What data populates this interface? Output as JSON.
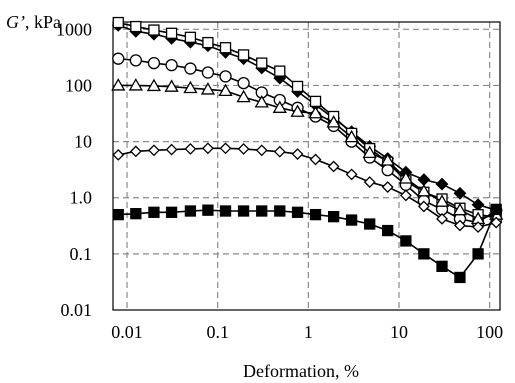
{
  "chart_data": {
    "type": "line",
    "ylabel_symbol": "G’",
    "ylabel_unit": ", kPa",
    "xlabel": "Deformation, %",
    "x_scale": "log",
    "y_scale": "log",
    "xlim": [
      0.01,
      100
    ],
    "ylim": [
      0.01,
      1000
    ],
    "x_ticks": [
      {
        "v": 0.01,
        "label": "0.01"
      },
      {
        "v": 0.1,
        "label": "0.1"
      },
      {
        "v": 1,
        "label": "1"
      },
      {
        "v": 10,
        "label": "10"
      },
      {
        "v": 100,
        "label": "100"
      }
    ],
    "y_ticks": [
      {
        "v": 1000,
        "label": "1000"
      },
      {
        "v": 100,
        "label": "100"
      },
      {
        "v": 10,
        "label": "10"
      },
      {
        "v": 1,
        "label": "1.0"
      },
      {
        "v": 0.1,
        "label": "0.1"
      },
      {
        "v": 0.01,
        "label": "0.01"
      }
    ],
    "grid": "dashed",
    "series": [
      {
        "marker": "filled-diamond",
        "x": [
          0.008,
          0.0125,
          0.0198,
          0.031,
          0.05,
          0.078,
          0.122,
          0.193,
          0.306,
          0.484,
          0.76,
          1.2,
          1.9,
          3.0,
          4.75,
          7.5,
          11.9,
          18.8,
          29.8,
          47,
          74.5,
          118
        ],
        "y": [
          1180,
          920,
          820,
          690,
          590,
          510,
          390,
          300,
          205,
          135,
          78,
          45,
          26,
          15,
          8.2,
          5.0,
          2.85,
          2.1,
          1.75,
          1.2,
          0.75,
          0.6
        ]
      },
      {
        "marker": "open-square",
        "x": [
          0.008,
          0.0125,
          0.0198,
          0.031,
          0.05,
          0.078,
          0.122,
          0.193,
          0.306,
          0.484,
          0.76,
          1.2,
          1.9,
          3.0,
          4.75,
          7.5,
          11.9,
          18.8,
          29.8,
          47,
          74.5,
          118
        ],
        "y": [
          1320,
          1120,
          970,
          850,
          720,
          580,
          470,
          350,
          250,
          180,
          96,
          52,
          28,
          14,
          7.5,
          4.3,
          2.0,
          1.25,
          0.95,
          0.65,
          0.5,
          0.45
        ]
      },
      {
        "marker": "open-circle",
        "x": [
          0.008,
          0.0125,
          0.0198,
          0.031,
          0.05,
          0.078,
          0.122,
          0.193,
          0.306,
          0.484,
          0.76,
          1.2,
          1.9,
          3.0,
          4.75,
          7.5,
          11.9,
          18.8,
          29.8,
          47,
          74.5,
          118
        ],
        "y": [
          300,
          280,
          250,
          230,
          200,
          170,
          145,
          110,
          75,
          55,
          40,
          28,
          19,
          10,
          5.2,
          3.1,
          1.7,
          0.88,
          0.62,
          0.42,
          0.36,
          0.6
        ]
      },
      {
        "marker": "open-triangle",
        "x": [
          0.008,
          0.0125,
          0.0198,
          0.031,
          0.05,
          0.078,
          0.122,
          0.193,
          0.306,
          0.484,
          0.76,
          1.2,
          1.9,
          3.0,
          4.75,
          7.5,
          11.9,
          18.8,
          29.8,
          47,
          74.5,
          118
        ],
        "y": [
          100,
          100,
          98,
          95,
          90,
          85,
          80,
          62,
          50,
          40,
          34,
          32,
          22,
          12,
          6.3,
          4.6,
          2.2,
          1.3,
          0.85,
          0.6,
          0.42,
          0.5
        ]
      },
      {
        "marker": "open-diamond",
        "x": [
          0.008,
          0.0125,
          0.0198,
          0.031,
          0.05,
          0.078,
          0.122,
          0.193,
          0.306,
          0.484,
          0.76,
          1.2,
          1.9,
          3.0,
          4.75,
          7.5,
          11.9,
          18.8,
          29.8,
          47,
          74.5,
          118
        ],
        "y": [
          5.8,
          6.7,
          7.0,
          7.2,
          7.4,
          7.6,
          7.6,
          7.4,
          7.0,
          6.6,
          6.0,
          4.8,
          3.6,
          2.6,
          1.9,
          1.55,
          1.1,
          0.7,
          0.42,
          0.32,
          0.3,
          0.36
        ]
      },
      {
        "marker": "filled-square",
        "x": [
          0.008,
          0.0125,
          0.0198,
          0.031,
          0.05,
          0.078,
          0.122,
          0.193,
          0.306,
          0.484,
          0.76,
          1.2,
          1.9,
          3.0,
          4.75,
          7.5,
          11.9,
          18.8,
          29.8,
          47,
          74.5,
          118
        ],
        "y": [
          0.5,
          0.52,
          0.55,
          0.55,
          0.58,
          0.6,
          0.58,
          0.58,
          0.58,
          0.58,
          0.55,
          0.5,
          0.46,
          0.4,
          0.34,
          0.26,
          0.17,
          0.1,
          0.06,
          0.038,
          0.1,
          0.62
        ]
      }
    ]
  }
}
